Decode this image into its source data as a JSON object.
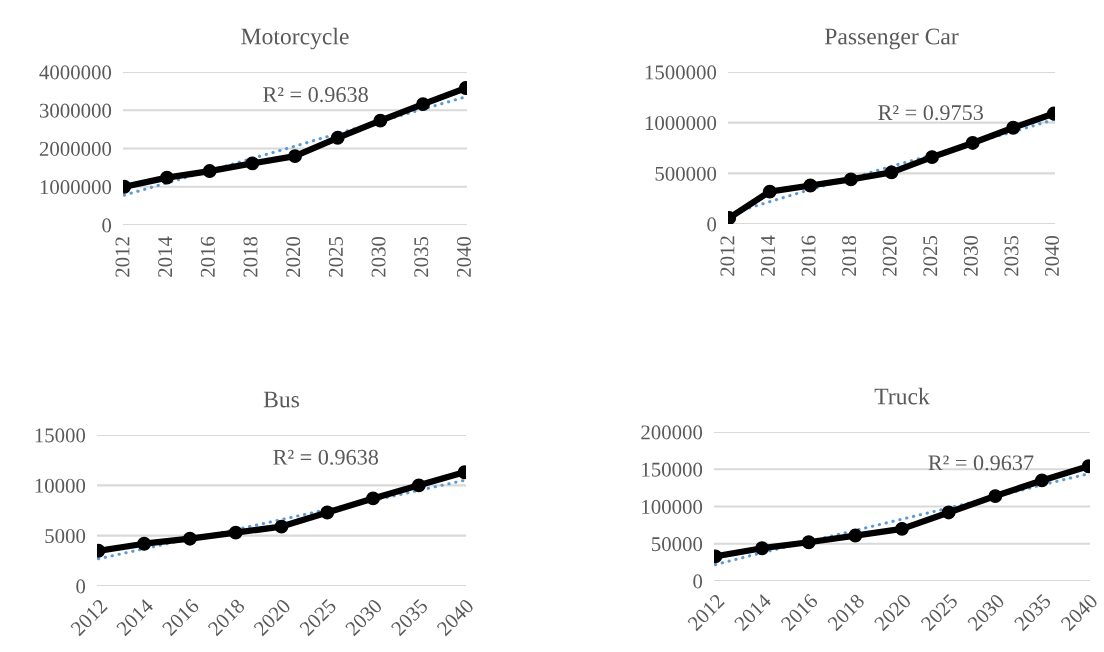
{
  "chart_data": [
    {
      "type": "line",
      "title": "Motorcycle",
      "categories": [
        "2012",
        "2014",
        "2016",
        "2018",
        "2020",
        "2025",
        "2030",
        "2035",
        "2040"
      ],
      "ylim": [
        0,
        4000000
      ],
      "yticks": [
        0,
        1000000,
        2000000,
        3000000,
        4000000
      ],
      "grid": "y",
      "marker": "circle",
      "annotations": [
        "R² = 0.9638"
      ],
      "series": [
        {
          "color": "#000000",
          "values": [
            1000000,
            1240000,
            1410000,
            1610000,
            1800000,
            2280000,
            2730000,
            3160000,
            3580000
          ]
        },
        {
          "type": "line",
          "color": "#5b9bd5",
          "line_style": "dotted",
          "marker": "none",
          "values": [
            780000,
            1100000,
            1420000,
            1740000,
            2060000,
            2390000,
            2710000,
            3030000,
            3350000
          ]
        }
      ]
    },
    {
      "type": "line",
      "title": "Passenger Car",
      "categories": [
        "2012",
        "2014",
        "2016",
        "2018",
        "2020",
        "2025",
        "2030",
        "2035",
        "2040"
      ],
      "ylim": [
        0,
        1500000
      ],
      "yticks": [
        0,
        500000,
        1000000,
        1500000
      ],
      "grid": "y",
      "marker": "circle",
      "annotations": [
        "R² = 0.9753"
      ],
      "series": [
        {
          "color": "#000000",
          "values": [
            60000,
            320000,
            380000,
            440000,
            510000,
            660000,
            800000,
            950000,
            1090000
          ]
        },
        {
          "type": "line",
          "color": "#5b9bd5",
          "line_style": "dotted",
          "marker": "none",
          "values": [
            100000,
            220000,
            340000,
            450000,
            570000,
            680000,
            800000,
            910000,
            1030000
          ]
        }
      ]
    },
    {
      "type": "line",
      "title": "Bus",
      "categories": [
        "2012",
        "2014",
        "2016",
        "2018",
        "2020",
        "2025",
        "2030",
        "2035",
        "2040"
      ],
      "ylim": [
        0,
        15000
      ],
      "yticks": [
        0,
        5000,
        10000,
        15000
      ],
      "grid": "y",
      "marker": "circle",
      "annotations": [
        "R² = 0.9638"
      ],
      "series": [
        {
          "color": "#000000",
          "values": [
            3500,
            4200,
            4700,
            5300,
            5900,
            7300,
            8700,
            10000,
            11300
          ]
        },
        {
          "type": "line",
          "color": "#5b9bd5",
          "line_style": "dotted",
          "marker": "none",
          "values": [
            2700,
            3700,
            4700,
            5600,
            6600,
            7600,
            8500,
            9500,
            10500
          ]
        }
      ]
    },
    {
      "type": "line",
      "title": "Truck",
      "categories": [
        "2012",
        "2014",
        "2016",
        "2018",
        "2020",
        "2025",
        "2030",
        "2035",
        "2040"
      ],
      "ylim": [
        0,
        200000
      ],
      "yticks": [
        0,
        50000,
        100000,
        150000,
        200000
      ],
      "grid": "y",
      "marker": "circle",
      "annotations": [
        "R² = 0.9637"
      ],
      "series": [
        {
          "color": "#000000",
          "values": [
            33000,
            44000,
            52000,
            61000,
            70000,
            92000,
            114000,
            135000,
            154000
          ]
        },
        {
          "type": "line",
          "color": "#5b9bd5",
          "line_style": "dotted",
          "marker": "none",
          "values": [
            22000,
            38000,
            53000,
            68000,
            83000,
            98000,
            113000,
            129000,
            144000
          ]
        }
      ]
    }
  ]
}
